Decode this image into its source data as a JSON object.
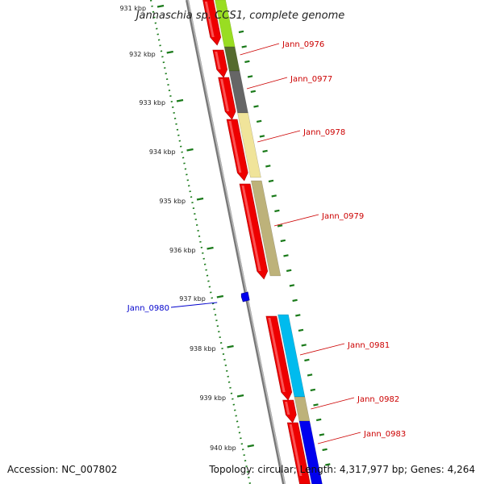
{
  "map": {
    "title": "Jannaschia sp. CCS1, complete genome",
    "accession": "Accession: NC_007802",
    "topology": "Topology: circular; Length: 4,317,977 bp; Genes: 4,264"
  },
  "colors": {
    "backbone": "#888888",
    "ruler_major": "#1a7a1a",
    "ruler_minor": "#1a7a1a",
    "label_forward": "#cc0000",
    "label_reverse": "#0000cc",
    "background": "#ffffff"
  },
  "ruler": {
    "ticks": [
      {
        "label": "931 kbp"
      },
      {
        "label": "932 kbp"
      },
      {
        "label": "933 kbp"
      },
      {
        "label": "934 kbp"
      },
      {
        "label": "935 kbp"
      },
      {
        "label": "936 kbp"
      },
      {
        "label": "937 kbp"
      },
      {
        "label": "938 kbp"
      },
      {
        "label": "939 kbp"
      },
      {
        "label": "940 kbp"
      }
    ]
  },
  "genes": [
    {
      "name": "Jann_0976",
      "strand": "forward",
      "color": "#556b2f"
    },
    {
      "name": "Jann_0977",
      "strand": "forward",
      "color": "#666666"
    },
    {
      "name": "Jann_0978",
      "strand": "forward",
      "color": "#f0e49a"
    },
    {
      "name": "Jann_0979",
      "strand": "forward",
      "color": "#bdb27a"
    },
    {
      "name": "Jann_0980",
      "strand": "reverse",
      "color": "#0000ee"
    },
    {
      "name": "Jann_0981",
      "strand": "forward",
      "color": "#00bbee"
    },
    {
      "name": "Jann_0982",
      "strand": "forward",
      "color": "#bdb27a"
    },
    {
      "name": "Jann_0983",
      "strand": "forward",
      "color": "#0000ee"
    }
  ]
}
